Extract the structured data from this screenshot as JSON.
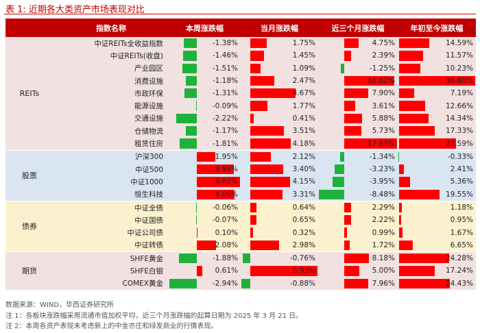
{
  "title": "表 1:  近期各大类资产市场表现对比",
  "headers": [
    "指数名称",
    "本周涨跌幅",
    "当月涨跌幅",
    "近三个月涨跌幅",
    "年初至今涨跌幅"
  ],
  "colors": {
    "header_bg": "#c00000",
    "positive": "#ff0000",
    "negative": "#1db33a"
  },
  "groups": [
    {
      "name": "REITs",
      "cls": "g-reits",
      "rows": [
        {
          "name": "中证REITs全收益指数",
          "v": [
            -1.38,
            1.75,
            4.75,
            14.59
          ],
          "t": [
            "-1.38%",
            "1.75%",
            "4.75%",
            "14.59%"
          ]
        },
        {
          "name": "中证REITs(收盘)",
          "v": [
            -1.46,
            1.45,
            2.39,
            11.57
          ],
          "t": [
            "-1.46%",
            "1.45%",
            "2.39%",
            "11.57%"
          ]
        },
        {
          "name": "产业园区",
          "v": [
            -1.51,
            1.09,
            -1.25,
            10.23
          ],
          "t": [
            "-1.51%",
            "1.09%",
            "-1.25%",
            "10.23%"
          ]
        },
        {
          "name": "消费设施",
          "v": [
            -1.18,
            2.47,
            16.62,
            36.8
          ],
          "t": [
            "-1.18%",
            "2.47%",
            "16.62%",
            "36.80%"
          ]
        },
        {
          "name": "市政环保",
          "v": [
            -1.31,
            4.67,
            7.9,
            7.19
          ],
          "t": [
            "-1.31%",
            "4.67%",
            "7.90%",
            "7.19%"
          ]
        },
        {
          "name": "能源设施",
          "v": [
            -0.09,
            1.77,
            3.61,
            12.66
          ],
          "t": [
            "-0.09%",
            "1.77%",
            "3.61%",
            "12.66%"
          ]
        },
        {
          "name": "交通设施",
          "v": [
            -2.22,
            0.41,
            5.88,
            14.34
          ],
          "t": [
            "-2.22%",
            "0.41%",
            "5.88%",
            "14.34%"
          ]
        },
        {
          "name": "仓储物流",
          "v": [
            -1.17,
            3.51,
            5.73,
            17.33
          ],
          "t": [
            "-1.17%",
            "3.51%",
            "5.73%",
            "17.33%"
          ]
        },
        {
          "name": "租赁住房",
          "v": [
            -1.81,
            4.18,
            17.63,
            27.59
          ],
          "t": [
            "-1.81%",
            "4.18%",
            "17.63%",
            "27.59%"
          ]
        }
      ]
    },
    {
      "name": "股票",
      "cls": "g-stock",
      "rows": [
        {
          "name": "沪深300",
          "v": [
            1.95,
            2.12,
            -1.34,
            -0.33
          ],
          "t": [
            "1.95%",
            "2.12%",
            "-1.34%",
            "-0.33%"
          ]
        },
        {
          "name": "中证500",
          "v": [
            3.98,
            3.4,
            -3.23,
            2.41
          ],
          "t": [
            "3.98%",
            "3.40%",
            "-3.23%",
            "2.41%"
          ]
        },
        {
          "name": "中证1000",
          "v": [
            4.62,
            4.15,
            -3.95,
            5.36
          ],
          "t": [
            "4.62%",
            "4.15%",
            "-3.95%",
            "5.36%"
          ]
        },
        {
          "name": "恒生科技",
          "v": [
            4.06,
            3.31,
            -8.48,
            19.55
          ],
          "t": [
            "4.06%",
            "3.31%",
            "-8.48%",
            "19.55%"
          ]
        }
      ]
    },
    {
      "name": "债券",
      "cls": "g-bond",
      "rows": [
        {
          "name": "中证全债",
          "v": [
            -0.06,
            0.64,
            2.29,
            1.18
          ],
          "t": [
            "-0.06%",
            "0.64%",
            "2.29%",
            "1.18%"
          ]
        },
        {
          "name": "中证国债",
          "v": [
            -0.07,
            0.65,
            2.22,
            0.95
          ],
          "t": [
            "-0.07%",
            "0.65%",
            "2.22%",
            "0.95%"
          ]
        },
        {
          "name": "中证公司债",
          "v": [
            0.1,
            0.32,
            0.99,
            1.67
          ],
          "t": [
            "0.10%",
            "0.32%",
            "0.99%",
            "1.67%"
          ]
        },
        {
          "name": "中证转债",
          "v": [
            2.08,
            2.98,
            1.72,
            6.65
          ],
          "t": [
            "2.08%",
            "2.98%",
            "1.72%",
            "6.65%"
          ]
        }
      ]
    },
    {
      "name": "期货",
      "cls": "g-fut",
      "rows": [
        {
          "name": "SHFE黄金",
          "v": [
            -1.88,
            -0.76,
            8.18,
            24.28
          ],
          "t": [
            "-1.88%",
            "-0.76%",
            "8.18%",
            "24.28%"
          ]
        },
        {
          "name": "SHFE白银",
          "v": [
            0.61,
            6.93,
            5.0,
            17.24
          ],
          "t": [
            "0.61%",
            "6.93%",
            "5.00%",
            "17.24%"
          ]
        },
        {
          "name": "COMEX黄金",
          "v": [
            -2.94,
            -0.88,
            7.96,
            24.43
          ],
          "t": [
            "-2.94%",
            "-0.88%",
            "7.96%",
            "24.43%"
          ]
        }
      ]
    }
  ],
  "notes": [
    "数据来源：WIND，华西证券研究所",
    "注 1：各板块涨跌幅采用流通市值加权平均，近三个月涨跌幅的起算日期为 2025 年 3 月 21 日。",
    "注 2：本周各资产表现未考虑新上的中金亦庄和绿发商业的行情表现。"
  ]
}
